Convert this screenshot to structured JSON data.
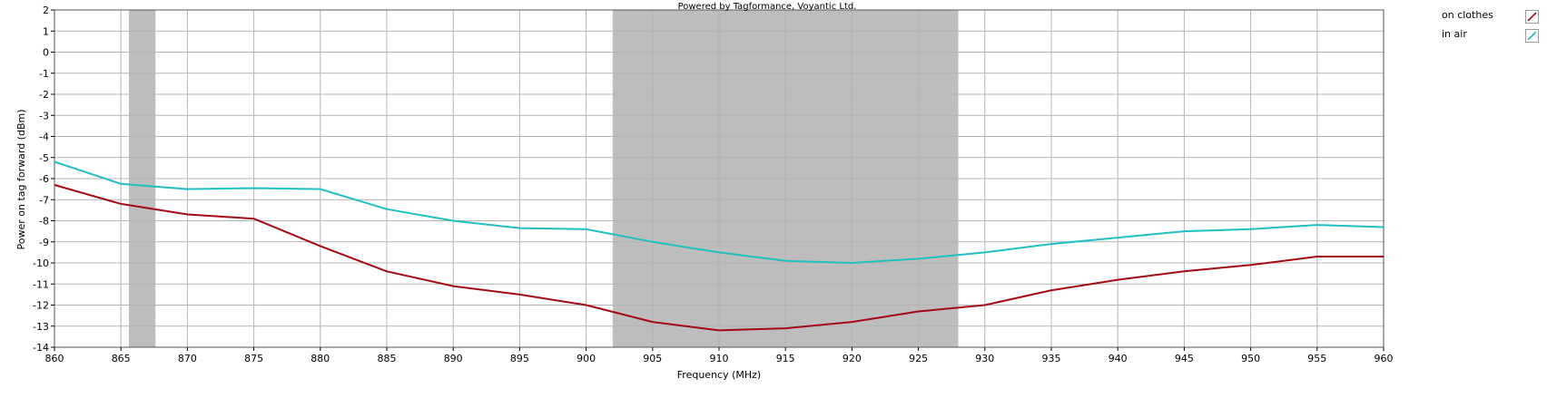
{
  "chart_data": {
    "type": "line",
    "title": "Powered by Tagformance, Voyantic Ltd.",
    "xlabel": "Frequency (MHz)",
    "ylabel": "Power on tag forward (dBm)",
    "xlim": [
      860,
      960
    ],
    "ylim": [
      -14,
      2
    ],
    "x_ticks": [
      "860",
      "865",
      "870",
      "875",
      "880",
      "885",
      "890",
      "895",
      "900",
      "905",
      "910",
      "915",
      "920",
      "925",
      "930",
      "935",
      "940",
      "945",
      "950",
      "955",
      "960"
    ],
    "y_ticks": [
      "2",
      "1",
      "0",
      "-1",
      "-2",
      "-3",
      "-4",
      "-5",
      "-6",
      "-7",
      "-8",
      "-9",
      "-10",
      "-11",
      "-12",
      "-13",
      "-14"
    ],
    "grid": true,
    "legend_position": "top-right",
    "shaded_bands": [
      [
        865.6,
        867.6
      ],
      [
        902,
        928
      ]
    ],
    "colors": {
      "band": "#bdbdbd",
      "grid": "#b4b4b4"
    },
    "x": [
      860,
      865,
      870,
      875,
      880,
      885,
      890,
      895,
      900,
      905,
      910,
      915,
      920,
      925,
      930,
      935,
      940,
      945,
      950,
      955,
      960
    ],
    "series": [
      {
        "name": "on clothes",
        "color": "#a30b12",
        "values": [
          -6.3,
          -7.2,
          -7.7,
          -7.9,
          -9.2,
          -10.4,
          -11.1,
          -11.5,
          -12.0,
          -12.8,
          -13.2,
          -13.1,
          -12.8,
          -12.3,
          -12.0,
          -11.3,
          -10.8,
          -10.4,
          -10.1,
          -9.7,
          -9.7
        ]
      },
      {
        "name": "in air",
        "color": "#1fbfc2",
        "values": [
          -5.2,
          -6.25,
          -6.5,
          -6.45,
          -6.5,
          -7.45,
          -8.0,
          -8.35,
          -8.4,
          -9.0,
          -9.5,
          -9.9,
          -10.0,
          -9.8,
          -9.5,
          -9.1,
          -8.8,
          -8.5,
          -8.4,
          -8.2,
          -8.3
        ]
      }
    ]
  }
}
